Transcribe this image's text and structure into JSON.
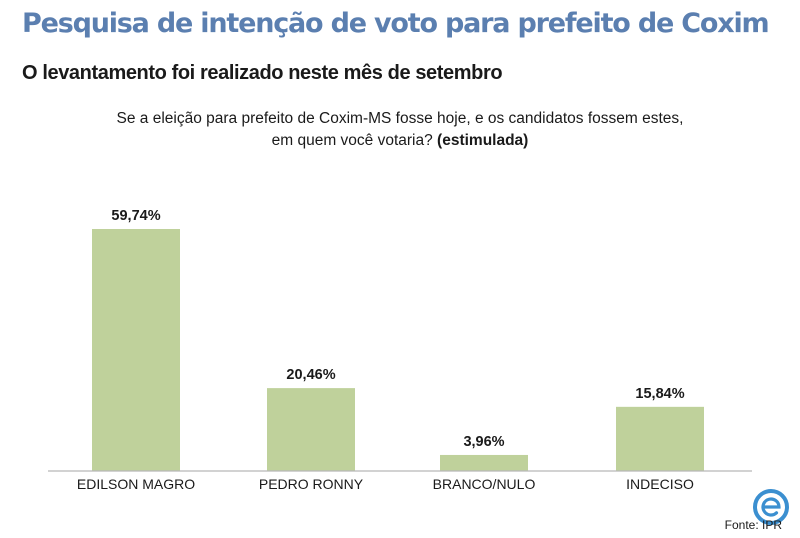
{
  "header": {
    "title": "Pesquisa de intenção de voto para prefeito de Coxim",
    "subtitle": "O levantamento foi realizado neste mês de setembro"
  },
  "question": {
    "line1": "Se a eleição para prefeito de Coxim-MS fosse hoje, e os candidatos fossem estes,",
    "line2_prefix": "em quem você votaria? ",
    "line2_bold": "(estimulada)"
  },
  "source": "Fonte: IPR",
  "logo_icon": "e-logo-icon",
  "colors": {
    "title": "#5b7fb0",
    "bar": "#bfd19b",
    "axis": "#b8b8b8",
    "logo": "#3b8fd0"
  },
  "chart_data": {
    "type": "bar",
    "categories": [
      "EDILSON MAGRO",
      "PEDRO RONNY",
      "BRANCO/NULO",
      "INDECISO"
    ],
    "values": [
      59.74,
      20.46,
      3.96,
      15.84
    ],
    "value_labels": [
      "59,74%",
      "20,46%",
      "3,96%",
      "15,84%"
    ],
    "ylim": [
      0,
      59.74
    ],
    "grid": false,
    "legend": "none"
  }
}
